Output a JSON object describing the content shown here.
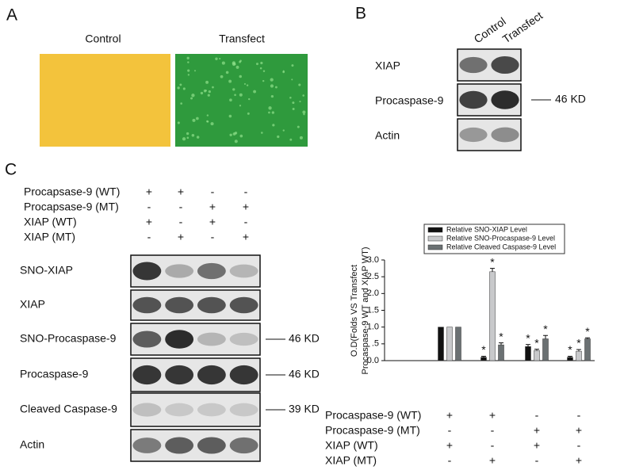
{
  "panel_a": {
    "label": "A",
    "images": [
      "Control",
      "Transfect"
    ]
  },
  "panel_b": {
    "label": "B",
    "lanes": [
      "Control",
      "Transfect"
    ],
    "blots": [
      "XIAP",
      "Procaspase-9",
      "Actin"
    ],
    "marker": "46 KD"
  },
  "panel_c": {
    "label": "C",
    "conditions": [
      {
        "name": "Procapsase-9 (WT)",
        "signs": [
          "+",
          "+",
          "-",
          "-"
        ]
      },
      {
        "name": "Procapsase-9 (MT)",
        "signs": [
          "-",
          "-",
          "+",
          "+"
        ]
      },
      {
        "name": "XIAP (WT)",
        "signs": [
          "+",
          "-",
          "+",
          "-"
        ]
      },
      {
        "name": "XIAP (MT)",
        "signs": [
          "-",
          "+",
          "-",
          "+"
        ]
      }
    ],
    "blots": [
      {
        "name": "SNO-XIAP"
      },
      {
        "name": "XIAP"
      },
      {
        "name": "SNO-Procaspase-9",
        "marker": "46 KD"
      },
      {
        "name": "Procaspase-9",
        "marker": "46 KD"
      },
      {
        "name": "Cleaved Caspase-9",
        "marker": "39 KD"
      },
      {
        "name": "Actin"
      }
    ]
  },
  "chart_data": {
    "type": "bar",
    "ylabel": [
      "O.D(Folds VS Transfect",
      "Procaspase-9 WT and XIAP WT)"
    ],
    "categories": [
      null,
      null,
      null,
      null
    ],
    "series": [
      {
        "name": "Relative SNO-XIAP Level",
        "color": "#111111",
        "values": [
          1,
          0.1,
          0.42,
          0.1
        ],
        "errors": [
          0,
          0.03,
          0.06,
          0.03
        ],
        "markers": [
          null,
          "*",
          "*",
          "*"
        ]
      },
      {
        "name": "Relative SNO-Procaspase-9 Level",
        "color": "#c8c9cb",
        "values": [
          1,
          2.65,
          0.3,
          0.28
        ],
        "errors": [
          0,
          0.1,
          0.04,
          0.05
        ],
        "markers": [
          null,
          "*",
          "*",
          "*"
        ]
      },
      {
        "name": "Relative Cleaved Caspase-9 Level",
        "color": "#6b7173",
        "values": [
          1,
          0.47,
          0.65,
          0.65
        ],
        "errors": [
          0,
          0.06,
          0.1,
          0.03
        ],
        "markers": [
          null,
          "*",
          "*",
          "*"
        ]
      }
    ],
    "ylim": [
      0,
      3.0
    ],
    "yticks": [
      {
        "value": 0,
        "label": "0.0"
      },
      {
        "value": 0.5,
        "label": ".5"
      },
      {
        "value": 1,
        "label": "1.0"
      },
      {
        "value": 1.5,
        "label": "1.5"
      },
      {
        "value": 2,
        "label": "2.0"
      },
      {
        "value": 2.5,
        "label": "2.5"
      },
      {
        "value": 3,
        "label": "3.0"
      }
    ],
    "conditions": [
      {
        "name": "Procaspase-9 (WT)",
        "signs": [
          "+",
          "+",
          "-",
          "-"
        ]
      },
      {
        "name": "Procaspase-9 (MT)",
        "signs": [
          "-",
          "-",
          "+",
          "+"
        ]
      },
      {
        "name": "XIAP (WT)",
        "signs": [
          "+",
          "-",
          "+",
          "-"
        ]
      },
      {
        "name": "XIAP (MT)",
        "signs": [
          "-",
          "+",
          "-",
          "+"
        ]
      }
    ]
  }
}
